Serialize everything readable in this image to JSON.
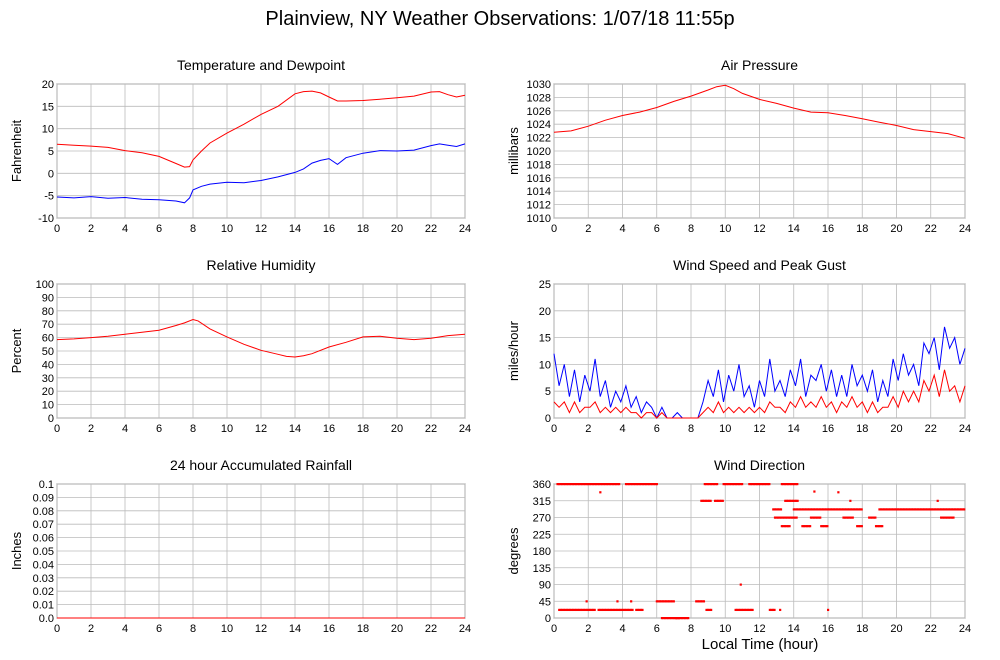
{
  "page": {
    "title": "Plainview, NY Weather Observations: 1/07/18 11:55p",
    "x_axis_title": "Local Time (hour)"
  },
  "chart_data": [
    {
      "id": "temp",
      "type": "line",
      "title": "Temperature and Dewpoint",
      "ylabel": "Fahrenheit",
      "xlabel": "",
      "xlim": [
        0,
        24
      ],
      "ylim": [
        -10,
        20
      ],
      "x_ticks": [
        0,
        2,
        4,
        6,
        8,
        10,
        12,
        14,
        16,
        18,
        20,
        22,
        24
      ],
      "y_ticks": [
        -10,
        -5,
        0,
        5,
        10,
        15,
        20
      ],
      "grid": true,
      "series": [
        {
          "color": "#ff0000",
          "x": [
            0,
            1,
            2,
            3,
            4,
            5,
            6,
            7,
            7.5,
            7.8,
            8,
            8.5,
            9,
            10,
            11,
            12,
            13,
            14,
            14.5,
            15,
            15.5,
            16,
            16.5,
            17,
            18,
            19,
            20,
            21,
            22,
            22.5,
            23,
            23.5,
            24
          ],
          "y": [
            6.5,
            6.3,
            6.1,
            5.8,
            5.1,
            4.6,
            3.8,
            2.2,
            1.4,
            1.5,
            3.0,
            5.0,
            6.8,
            9.0,
            11.0,
            13.2,
            15.0,
            17.8,
            18.3,
            18.4,
            18.0,
            17.1,
            16.2,
            16.2,
            16.3,
            16.6,
            16.9,
            17.3,
            18.2,
            18.3,
            17.6,
            17.1,
            17.5
          ]
        },
        {
          "color": "#0000ff",
          "x": [
            0,
            1,
            2,
            3,
            4,
            5,
            6,
            7,
            7.5,
            7.8,
            8,
            8.5,
            9,
            10,
            11,
            12,
            13,
            14,
            14.5,
            15,
            15.5,
            16,
            16.5,
            17,
            18,
            19,
            20,
            21,
            22,
            22.5,
            23,
            23.5,
            24
          ],
          "y": [
            -5.3,
            -5.5,
            -5.2,
            -5.6,
            -5.4,
            -5.8,
            -5.9,
            -6.2,
            -6.6,
            -5.5,
            -3.7,
            -2.9,
            -2.4,
            -2.0,
            -2.1,
            -1.6,
            -0.8,
            0.2,
            1.0,
            2.3,
            2.9,
            3.3,
            2.0,
            3.5,
            4.5,
            5.1,
            5.0,
            5.2,
            6.2,
            6.6,
            6.3,
            6.0,
            6.6
          ]
        }
      ]
    },
    {
      "id": "pressure",
      "type": "line",
      "title": "Air Pressure",
      "ylabel": "millibars",
      "xlabel": "",
      "xlim": [
        0,
        24
      ],
      "ylim": [
        1010,
        1030
      ],
      "x_ticks": [
        0,
        2,
        4,
        6,
        8,
        10,
        12,
        14,
        16,
        18,
        20,
        22,
        24
      ],
      "y_ticks": [
        1010,
        1012,
        1014,
        1016,
        1018,
        1020,
        1022,
        1024,
        1026,
        1028,
        1030
      ],
      "grid": true,
      "series": [
        {
          "color": "#ff0000",
          "x": [
            0,
            1,
            2,
            3,
            4,
            5,
            6,
            7,
            8,
            9,
            9.5,
            10,
            10.5,
            11,
            12,
            13,
            14,
            15,
            16,
            17,
            18,
            19,
            20,
            21,
            22,
            23,
            24
          ],
          "y": [
            1022.8,
            1023.0,
            1023.7,
            1024.6,
            1025.3,
            1025.8,
            1026.5,
            1027.4,
            1028.2,
            1029.1,
            1029.6,
            1029.8,
            1029.3,
            1028.6,
            1027.7,
            1027.1,
            1026.4,
            1025.8,
            1025.7,
            1025.3,
            1024.8,
            1024.3,
            1023.8,
            1023.2,
            1022.9,
            1022.6,
            1021.9
          ]
        }
      ]
    },
    {
      "id": "humidity",
      "type": "line",
      "title": "Relative Humidity",
      "ylabel": "Percent",
      "xlabel": "",
      "xlim": [
        0,
        24
      ],
      "ylim": [
        0,
        100
      ],
      "x_ticks": [
        0,
        2,
        4,
        6,
        8,
        10,
        12,
        14,
        16,
        18,
        20,
        22,
        24
      ],
      "y_ticks": [
        0,
        10,
        20,
        30,
        40,
        50,
        60,
        70,
        80,
        90,
        100
      ],
      "grid": true,
      "series": [
        {
          "color": "#ff0000",
          "x": [
            0,
            1,
            2,
            3,
            4,
            5,
            6,
            7,
            7.5,
            8,
            8.3,
            9,
            10,
            11,
            12,
            13,
            13.5,
            14,
            14.5,
            15,
            16,
            17,
            18,
            19,
            20,
            21,
            22,
            23,
            24
          ],
          "y": [
            58.5,
            59.0,
            60.0,
            61.0,
            62.5,
            64.0,
            65.5,
            69.0,
            71.0,
            73.5,
            72.5,
            66.5,
            60.5,
            55.0,
            50.5,
            47.5,
            46.0,
            45.5,
            46.5,
            48.0,
            53.0,
            56.5,
            60.5,
            61.0,
            59.5,
            58.5,
            59.5,
            61.5,
            62.5
          ]
        }
      ]
    },
    {
      "id": "wind",
      "type": "line",
      "title": "Wind Speed and Peak Gust",
      "ylabel": "miles/hour",
      "xlabel": "",
      "xlim": [
        0,
        24
      ],
      "ylim": [
        0,
        25
      ],
      "x_ticks": [
        0,
        2,
        4,
        6,
        8,
        10,
        12,
        14,
        16,
        18,
        20,
        22,
        24
      ],
      "y_ticks": [
        0,
        5,
        10,
        15,
        20,
        25
      ],
      "grid": true,
      "series": [
        {
          "color": "#0000ff",
          "x": [
            0,
            0.3,
            0.6,
            0.9,
            1.2,
            1.5,
            1.8,
            2.1,
            2.4,
            2.7,
            3.0,
            3.3,
            3.6,
            3.9,
            4.2,
            4.5,
            4.8,
            5.1,
            5.4,
            5.7,
            6.0,
            6.3,
            6.6,
            6.9,
            7.2,
            7.5,
            7.8,
            8.1,
            8.4,
            8.7,
            9.0,
            9.3,
            9.6,
            9.9,
            10.2,
            10.5,
            10.8,
            11.1,
            11.4,
            11.7,
            12.0,
            12.3,
            12.6,
            12.9,
            13.2,
            13.5,
            13.8,
            14.1,
            14.4,
            14.7,
            15.0,
            15.3,
            15.6,
            15.9,
            16.2,
            16.5,
            16.8,
            17.1,
            17.4,
            17.7,
            18.0,
            18.3,
            18.6,
            18.9,
            19.2,
            19.5,
            19.8,
            20.1,
            20.4,
            20.7,
            21.0,
            21.3,
            21.6,
            21.9,
            22.2,
            22.5,
            22.8,
            23.1,
            23.4,
            23.7,
            24.0
          ],
          "y": [
            12,
            6,
            10,
            4,
            9,
            3,
            8,
            5,
            11,
            4,
            7,
            2,
            5,
            3,
            6,
            2,
            4,
            1,
            3,
            2,
            0,
            2,
            0,
            0,
            1,
            0,
            0,
            0,
            0,
            3,
            7,
            4,
            9,
            3,
            8,
            5,
            10,
            4,
            6,
            2,
            7,
            4,
            11,
            5,
            7,
            4,
            9,
            6,
            11,
            4,
            8,
            7,
            10,
            5,
            9,
            4,
            8,
            4,
            10,
            6,
            8,
            5,
            9,
            3,
            7,
            4,
            11,
            7,
            12,
            8,
            10,
            6,
            14,
            12,
            15,
            9,
            17,
            13,
            15,
            10,
            13
          ]
        },
        {
          "color": "#ff0000",
          "x": [
            0,
            0.3,
            0.6,
            0.9,
            1.2,
            1.5,
            1.8,
            2.1,
            2.4,
            2.7,
            3.0,
            3.3,
            3.6,
            3.9,
            4.2,
            4.5,
            4.8,
            5.1,
            5.4,
            5.7,
            6.0,
            6.3,
            6.6,
            6.9,
            7.2,
            7.5,
            7.8,
            8.1,
            8.4,
            8.7,
            9.0,
            9.3,
            9.6,
            9.9,
            10.2,
            10.5,
            10.8,
            11.1,
            11.4,
            11.7,
            12.0,
            12.3,
            12.6,
            12.9,
            13.2,
            13.5,
            13.8,
            14.1,
            14.4,
            14.7,
            15.0,
            15.3,
            15.6,
            15.9,
            16.2,
            16.5,
            16.8,
            17.1,
            17.4,
            17.7,
            18.0,
            18.3,
            18.6,
            18.9,
            19.2,
            19.5,
            19.8,
            20.1,
            20.4,
            20.7,
            21.0,
            21.3,
            21.6,
            21.9,
            22.2,
            22.5,
            22.8,
            23.1,
            23.4,
            23.7,
            24.0
          ],
          "y": [
            3,
            2,
            3,
            1,
            3,
            1,
            2,
            2,
            3,
            1,
            2,
            1,
            2,
            1,
            2,
            1,
            1,
            0,
            1,
            1,
            0,
            1,
            0,
            0,
            0,
            0,
            0,
            0,
            0,
            1,
            2,
            1,
            3,
            1,
            2,
            1,
            2,
            1,
            2,
            1,
            2,
            1,
            3,
            2,
            2,
            1,
            3,
            2,
            4,
            2,
            3,
            2,
            4,
            2,
            3,
            1,
            3,
            2,
            4,
            2,
            3,
            1,
            3,
            1,
            2,
            2,
            4,
            2,
            5,
            3,
            5,
            3,
            7,
            5,
            8,
            4,
            9,
            5,
            6,
            3,
            6
          ]
        }
      ]
    },
    {
      "id": "rain",
      "type": "line",
      "title": "24 hour Accumulated Rainfall",
      "ylabel": "Inches",
      "xlabel": "",
      "xlim": [
        0,
        24
      ],
      "ylim": [
        0,
        0.1
      ],
      "x_ticks": [
        0,
        2,
        4,
        6,
        8,
        10,
        12,
        14,
        16,
        18,
        20,
        22,
        24
      ],
      "y_ticks": [
        0,
        0.01,
        0.02,
        0.03,
        0.04,
        0.05,
        0.06,
        0.07,
        0.08,
        0.09,
        0.1
      ],
      "y_tick_labels": [
        "0.0",
        "0.01",
        "0.02",
        "0.03",
        "0.04",
        "0.05",
        "0.06",
        "0.07",
        "0.08",
        "0.09",
        "0.1"
      ],
      "grid": true,
      "series": [
        {
          "color": "#ff0000",
          "x": [
            0,
            24
          ],
          "y": [
            0,
            0
          ]
        }
      ]
    },
    {
      "id": "direction",
      "type": "scatter",
      "title": "Wind Direction",
      "ylabel": "degrees",
      "xlabel": "Local Time (hour)",
      "xlim": [
        0,
        24
      ],
      "ylim": [
        0,
        360
      ],
      "x_ticks": [
        0,
        2,
        4,
        6,
        8,
        10,
        12,
        14,
        16,
        18,
        20,
        22,
        24
      ],
      "y_ticks": [
        0,
        45,
        90,
        135,
        180,
        225,
        270,
        315,
        360
      ],
      "grid": true,
      "series": [
        {
          "color": "#ff0000",
          "segments": [
            [
              0.3,
              2.4,
              22
            ],
            [
              2.6,
              4.6,
              22
            ],
            [
              4.8,
              5.2,
              22
            ],
            [
              8.9,
              9.2,
              22
            ],
            [
              10.6,
              11.6,
              22
            ],
            [
              12.6,
              12.9,
              22
            ],
            [
              6.0,
              7.0,
              45
            ],
            [
              8.3,
              8.8,
              45
            ],
            [
              6.3,
              7.9,
              0
            ],
            [
              7.1,
              7.3,
              0
            ],
            [
              0.2,
              3.8,
              360
            ],
            [
              4.2,
              6.0,
              360
            ],
            [
              8.8,
              9.6,
              360
            ],
            [
              9.9,
              11.0,
              360
            ],
            [
              11.4,
              12.6,
              360
            ],
            [
              13.3,
              14.2,
              360
            ],
            [
              8.6,
              9.2,
              315
            ],
            [
              9.4,
              9.9,
              315
            ],
            [
              13.5,
              14.3,
              315
            ],
            [
              12.9,
              14.2,
              270
            ],
            [
              15.0,
              15.6,
              270
            ],
            [
              16.9,
              17.5,
              270
            ],
            [
              18.4,
              18.8,
              270
            ],
            [
              22.6,
              23.4,
              270
            ],
            [
              12.8,
              13.3,
              292
            ],
            [
              14.0,
              18.0,
              292
            ],
            [
              19.0,
              24.0,
              292
            ],
            [
              13.3,
              13.8,
              247
            ],
            [
              14.5,
              15.0,
              247
            ],
            [
              15.6,
              16.0,
              247
            ],
            [
              17.7,
              18.0,
              247
            ],
            [
              18.8,
              19.2,
              247
            ]
          ],
          "points": [
            [
              2.7,
              338
            ],
            [
              10.9,
              90
            ],
            [
              3.7,
              45
            ],
            [
              4.5,
              45
            ],
            [
              1.9,
              45
            ],
            [
              16.0,
              22
            ],
            [
              13.2,
              22
            ],
            [
              22.4,
              315
            ],
            [
              15.2,
              340
            ],
            [
              17.3,
              315
            ],
            [
              16.6,
              338
            ]
          ]
        }
      ]
    }
  ]
}
